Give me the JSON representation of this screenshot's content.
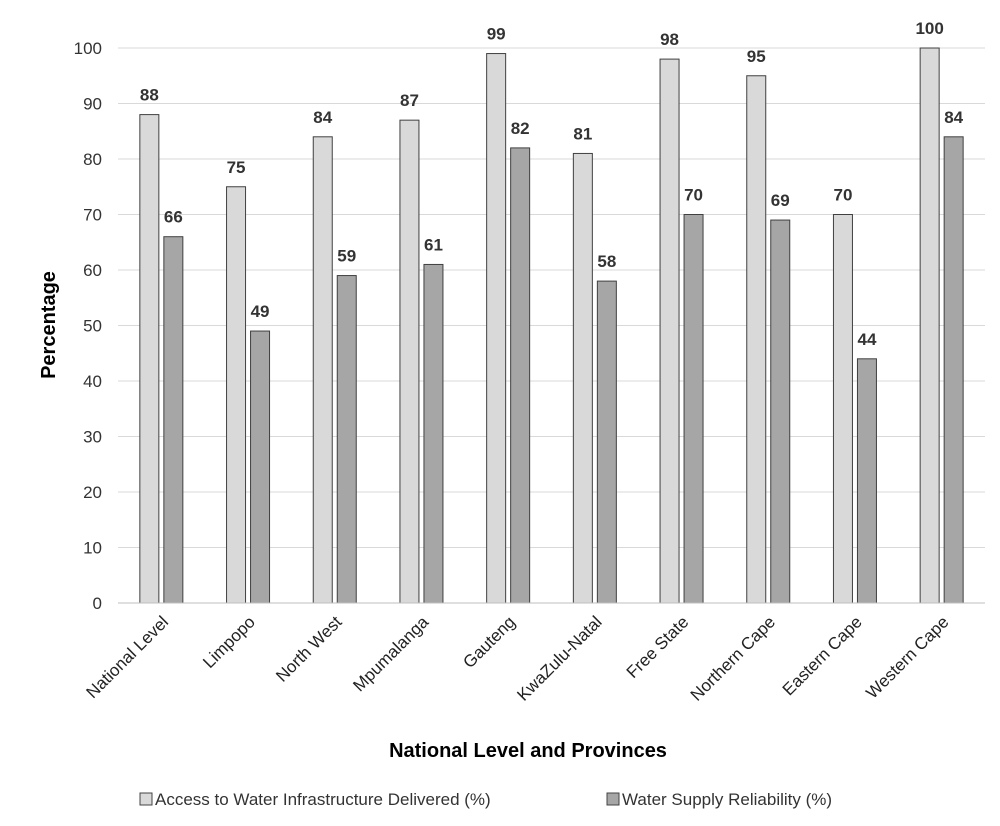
{
  "chart_data": {
    "type": "bar",
    "title": "",
    "xlabel": "National Level and Provinces",
    "ylabel": "Percentage",
    "ylim": [
      0,
      100
    ],
    "yticks": [
      0,
      10,
      20,
      30,
      40,
      50,
      60,
      70,
      80,
      90,
      100
    ],
    "grid": true,
    "legend_position": "bottom",
    "categories": [
      "National Level",
      "Limpopo",
      "North West",
      "Mpumalanga",
      "Gauteng",
      "KwaZulu-Natal",
      "Free State",
      "Northern Cape",
      "Eastern Cape",
      "Western Cape"
    ],
    "series": [
      {
        "name": "Access to Water Infrastructure Delivered (%)",
        "color": "#d9d9d9",
        "values": [
          88,
          75,
          84,
          87,
          99,
          81,
          98,
          95,
          70,
          100
        ]
      },
      {
        "name": "Water Supply Reliability (%)",
        "color": "#a6a6a6",
        "values": [
          66,
          49,
          59,
          61,
          82,
          58,
          70,
          69,
          44,
          84
        ]
      }
    ]
  }
}
